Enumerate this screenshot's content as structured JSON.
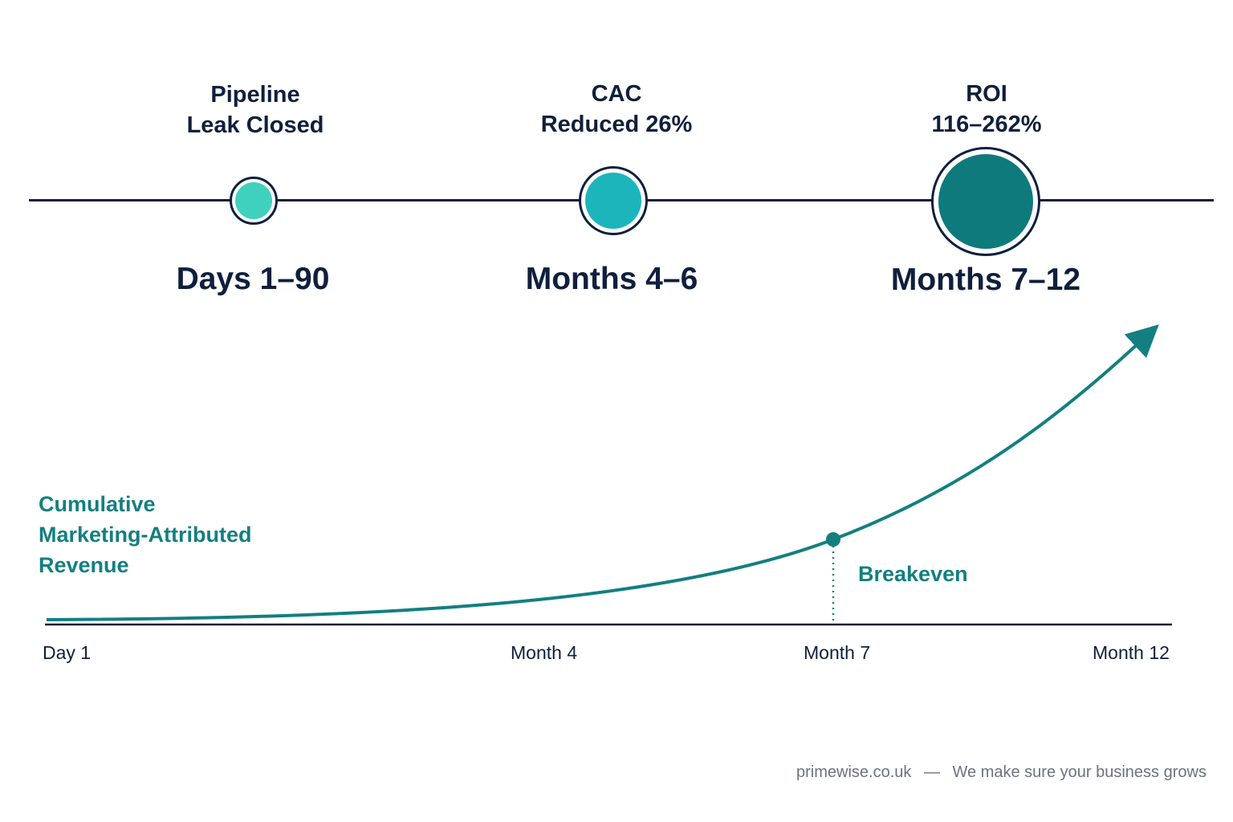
{
  "timeline": {
    "milestones": [
      {
        "caption_line1": "Pipeline",
        "caption_line2": "Leak Closed",
        "period": "Days 1–90",
        "color": "#3fd1bd"
      },
      {
        "caption_line1": "CAC",
        "caption_line2": "Reduced 26%",
        "period": "Months 4–6",
        "color": "#1cb5bb"
      },
      {
        "caption_line1": "ROI",
        "caption_line2": "116–262%",
        "period": "Months 7–12",
        "color": "#0e7a7c"
      }
    ]
  },
  "chart_data": {
    "type": "line",
    "ylabel_line1": "Cumulative",
    "ylabel_line2": "Marketing-Attributed",
    "ylabel_line3": "Revenue",
    "x_ticks": [
      "Day 1",
      "Month 4",
      "Month 7",
      "Month 12"
    ],
    "series": [
      {
        "x": [
          "Day 1",
          "Month 4",
          "Month 7",
          "Month 12"
        ],
        "values": [
          0,
          0.05,
          0.27,
          1.0
        ]
      }
    ],
    "annotation": {
      "label": "Breakeven",
      "x": "Month 7"
    },
    "line_color": "#137f80"
  },
  "footer": {
    "site": "primewise.co.uk",
    "separator": "—",
    "tagline": "We make sure your business grows"
  }
}
